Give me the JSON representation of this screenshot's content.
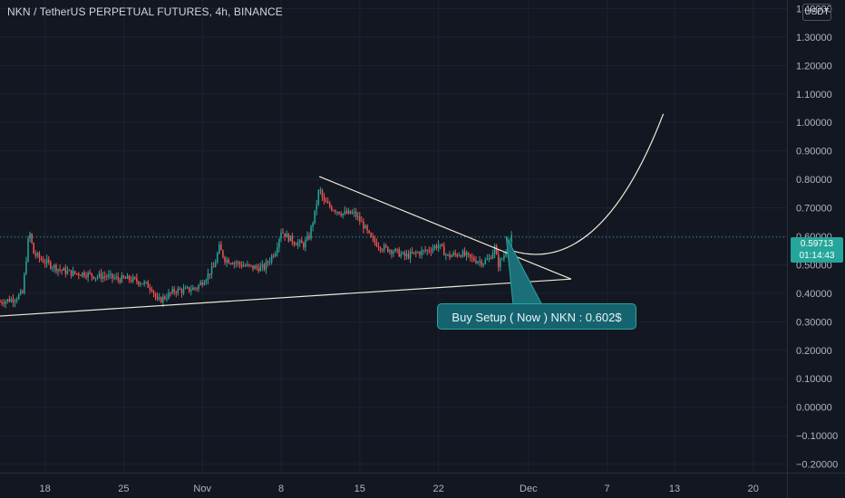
{
  "header": {
    "title": "NKN / TetherUS PERPETUAL FUTURES, 4h, BINANCE",
    "currency": "USDT"
  },
  "price_tag": {
    "price": "0.59713",
    "countdown": "01:14:43"
  },
  "annotation": {
    "text": "Buy Setup ( Now ) NKN : 0.602$"
  },
  "colors": {
    "background": "#131722",
    "up": "#26a69a",
    "down": "#ef5350",
    "grid": "#1e2230",
    "text": "#b2b5be",
    "drawing": "#f0ead6"
  },
  "chart_data": {
    "type": "candlestick",
    "title": "NKN / TetherUS PERPETUAL FUTURES, 4h, BINANCE",
    "timeframe": "4h",
    "ylim": [
      -0.23,
      1.43
    ],
    "y_ticks": [
      "1.40000",
      "1.30000",
      "1.20000",
      "1.10000",
      "1.00000",
      "0.90000",
      "0.80000",
      "0.70000",
      "0.60000",
      "0.50000",
      "0.40000",
      "0.30000",
      "0.20000",
      "0.10000",
      "0.00000",
      "−0.10000",
      "−0.20000"
    ],
    "y_tick_values": [
      1.4,
      1.3,
      1.2,
      1.1,
      1.0,
      0.9,
      0.8,
      0.7,
      0.6,
      0.5,
      0.4,
      0.3,
      0.2,
      0.1,
      0.0,
      -0.1,
      -0.2
    ],
    "x_ticks": [
      "18",
      "25",
      "Nov",
      "8",
      "15",
      "22",
      "Dec",
      "7",
      "13",
      "20"
    ],
    "x_tick_days": [
      18,
      25,
      32,
      39,
      46,
      53,
      61,
      68,
      74,
      81
    ],
    "x_range_days": [
      14.0,
      84.0
    ],
    "last_price": 0.59713,
    "price_path": [
      [
        14.0,
        0.37
      ],
      [
        15.2,
        0.38
      ],
      [
        16.0,
        0.4
      ],
      [
        16.6,
        0.62
      ],
      [
        17.0,
        0.54
      ],
      [
        17.6,
        0.52
      ],
      [
        18.5,
        0.5
      ],
      [
        19.5,
        0.48
      ],
      [
        20.5,
        0.47
      ],
      [
        21.5,
        0.47
      ],
      [
        22.5,
        0.46
      ],
      [
        23.5,
        0.46
      ],
      [
        24.5,
        0.45
      ],
      [
        25.5,
        0.45
      ],
      [
        26.5,
        0.44
      ],
      [
        27.5,
        0.42
      ],
      [
        28.0,
        0.37
      ],
      [
        28.8,
        0.39
      ],
      [
        29.6,
        0.41
      ],
      [
        30.5,
        0.41
      ],
      [
        31.5,
        0.42
      ],
      [
        32.2,
        0.45
      ],
      [
        33.0,
        0.49
      ],
      [
        33.5,
        0.56
      ],
      [
        34.0,
        0.52
      ],
      [
        34.8,
        0.51
      ],
      [
        35.5,
        0.5
      ],
      [
        36.5,
        0.49
      ],
      [
        37.5,
        0.49
      ],
      [
        38.5,
        0.55
      ],
      [
        39.0,
        0.62
      ],
      [
        39.5,
        0.6
      ],
      [
        40.2,
        0.58
      ],
      [
        41.0,
        0.57
      ],
      [
        41.5,
        0.6
      ],
      [
        42.0,
        0.68
      ],
      [
        42.4,
        0.77
      ],
      [
        42.8,
        0.72
      ],
      [
        43.5,
        0.7
      ],
      [
        44.5,
        0.68
      ],
      [
        45.5,
        0.68
      ],
      [
        46.3,
        0.64
      ],
      [
        47.0,
        0.59
      ],
      [
        48.0,
        0.56
      ],
      [
        49.0,
        0.55
      ],
      [
        50.0,
        0.53
      ],
      [
        51.0,
        0.54
      ],
      [
        52.0,
        0.55
      ],
      [
        53.0,
        0.57
      ],
      [
        53.8,
        0.53
      ],
      [
        55.0,
        0.54
      ],
      [
        56.0,
        0.52
      ],
      [
        57.0,
        0.51
      ],
      [
        57.5,
        0.52
      ],
      [
        58.0,
        0.56
      ],
      [
        58.3,
        0.5
      ],
      [
        58.8,
        0.53
      ],
      [
        59.2,
        0.57
      ],
      [
        59.6,
        0.6
      ]
    ],
    "drawings": {
      "resistance_line": {
        "start": [
          42.4,
          0.81
        ],
        "end": [
          64.8,
          0.45
        ]
      },
      "support_line": {
        "start": [
          14.0,
          0.32
        ],
        "end": [
          64.8,
          0.45
        ]
      },
      "projection_curve": {
        "start": [
          59.5,
          0.55
        ],
        "end": [
          73.0,
          1.03
        ]
      },
      "last_price_line": 0.59713
    }
  }
}
